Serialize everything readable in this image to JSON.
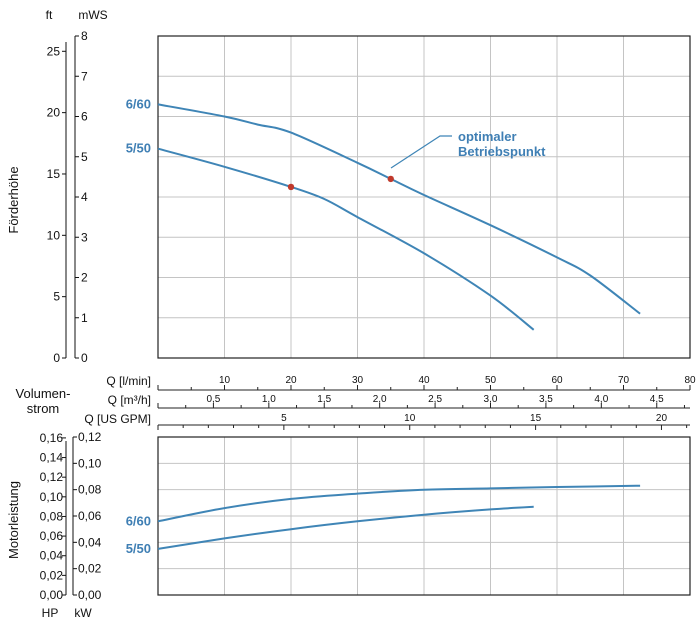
{
  "colors": {
    "curve": "#3f85b6",
    "series_label": "#3f7fb4",
    "grid": "#c4c4c4",
    "frame": "#222222",
    "marker": "#c0392b",
    "text": "#111111"
  },
  "top_chart": {
    "ylabel": "Förderhöhe",
    "unit_ft": "ft",
    "unit_mws": "mWS",
    "ft_ticks": [
      "0",
      "5",
      "10",
      "15",
      "20",
      "25"
    ],
    "mws_ticks": [
      "0",
      "1",
      "2",
      "3",
      "4",
      "5",
      "6",
      "7",
      "8"
    ],
    "annotation": [
      "optimaler",
      "Betriebspunkt"
    ]
  },
  "flow_axes": {
    "title": [
      "Volumen-",
      "strom"
    ],
    "lmin_label": "Q [l/min]",
    "m3h_label": "Q [m³/h]",
    "usgpm_label": "Q [US GPM]",
    "lmin_ticks": [
      "10",
      "20",
      "30",
      "40",
      "50",
      "60",
      "70",
      "80"
    ],
    "m3h_ticks": [
      "0,5",
      "1,0",
      "1,5",
      "2,0",
      "2,5",
      "3,0",
      "3,5",
      "4,0",
      "4,5"
    ],
    "usgpm_ticks": [
      "5",
      "10",
      "15",
      "20"
    ]
  },
  "bottom_chart": {
    "ylabel": "Motorleistung",
    "unit_hp": "HP",
    "unit_kw": "kW",
    "hp_ticks": [
      "0,00",
      "0,02",
      "0,04",
      "0,06",
      "0,08",
      "0,10",
      "0,12",
      "0,14",
      "0,16"
    ],
    "kw_ticks": [
      "0,00",
      "0,02",
      "0,04",
      "0,06",
      "0,08",
      "0,10",
      "0,12"
    ]
  },
  "chart_data": [
    {
      "type": "line",
      "xlabel": "Q [l/min]",
      "ylabel": "Förderhöhe",
      "x_unit": "l/min",
      "y_unit": "mWS",
      "xlim": [
        0,
        80
      ],
      "ylim": [
        0,
        8
      ],
      "grid": true,
      "series": [
        {
          "name": "6/60",
          "x": [
            0,
            10,
            15,
            20,
            30,
            35,
            40,
            50,
            60,
            65,
            72.5
          ],
          "y": [
            6.3,
            6.0,
            5.8,
            5.6,
            4.85,
            4.45,
            4.05,
            3.3,
            2.5,
            2.05,
            1.1
          ]
        },
        {
          "name": "5/50",
          "x": [
            0,
            10,
            20,
            25,
            30,
            40,
            50,
            56.5
          ],
          "y": [
            5.2,
            4.75,
            4.25,
            3.95,
            3.5,
            2.6,
            1.55,
            0.7
          ]
        }
      ],
      "markers": [
        {
          "series": "6/60",
          "x": 35,
          "y": 4.45
        },
        {
          "series": "5/50",
          "x": 20,
          "y": 4.25
        }
      ]
    },
    {
      "type": "line",
      "xlabel": "Q [l/min]",
      "ylabel": "Motorleistung",
      "x_unit": "l/min",
      "y_unit": "kW",
      "xlim": [
        0,
        80
      ],
      "ylim": [
        0,
        0.12
      ],
      "grid": true,
      "series": [
        {
          "name": "6/60",
          "x": [
            0,
            10,
            20,
            30,
            40,
            50,
            60,
            72.5
          ],
          "y": [
            0.056,
            0.066,
            0.073,
            0.077,
            0.08,
            0.081,
            0.082,
            0.083
          ]
        },
        {
          "name": "5/50",
          "x": [
            0,
            10,
            20,
            30,
            40,
            50,
            56.5
          ],
          "y": [
            0.035,
            0.043,
            0.05,
            0.056,
            0.061,
            0.065,
            0.067
          ]
        }
      ]
    }
  ]
}
